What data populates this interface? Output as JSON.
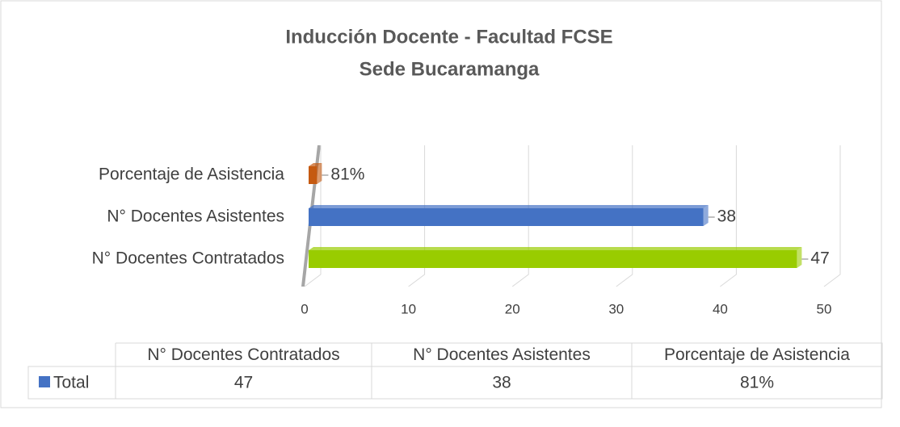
{
  "chart_data": {
    "type": "bar3d_horizontal",
    "title": [
      "Inducción Docente - Facultad FCSE",
      "Sede Bucaramanga"
    ],
    "categories": [
      "N° Docentes Contratados",
      "N° Docentes Asistentes",
      "Porcentaje de Asistencia"
    ],
    "series": [
      {
        "name": "Total",
        "color": "#4472c4",
        "colors": [
          "#99cc00",
          "#4472c4",
          "#c55a11"
        ],
        "values": [
          47,
          38,
          0.81
        ],
        "value_labels": [
          "47",
          "38",
          "81%"
        ]
      }
    ],
    "xlim": [
      0,
      50
    ],
    "xticks": [
      0,
      10,
      20,
      30,
      40,
      50
    ],
    "grid": true,
    "data_table": true
  }
}
